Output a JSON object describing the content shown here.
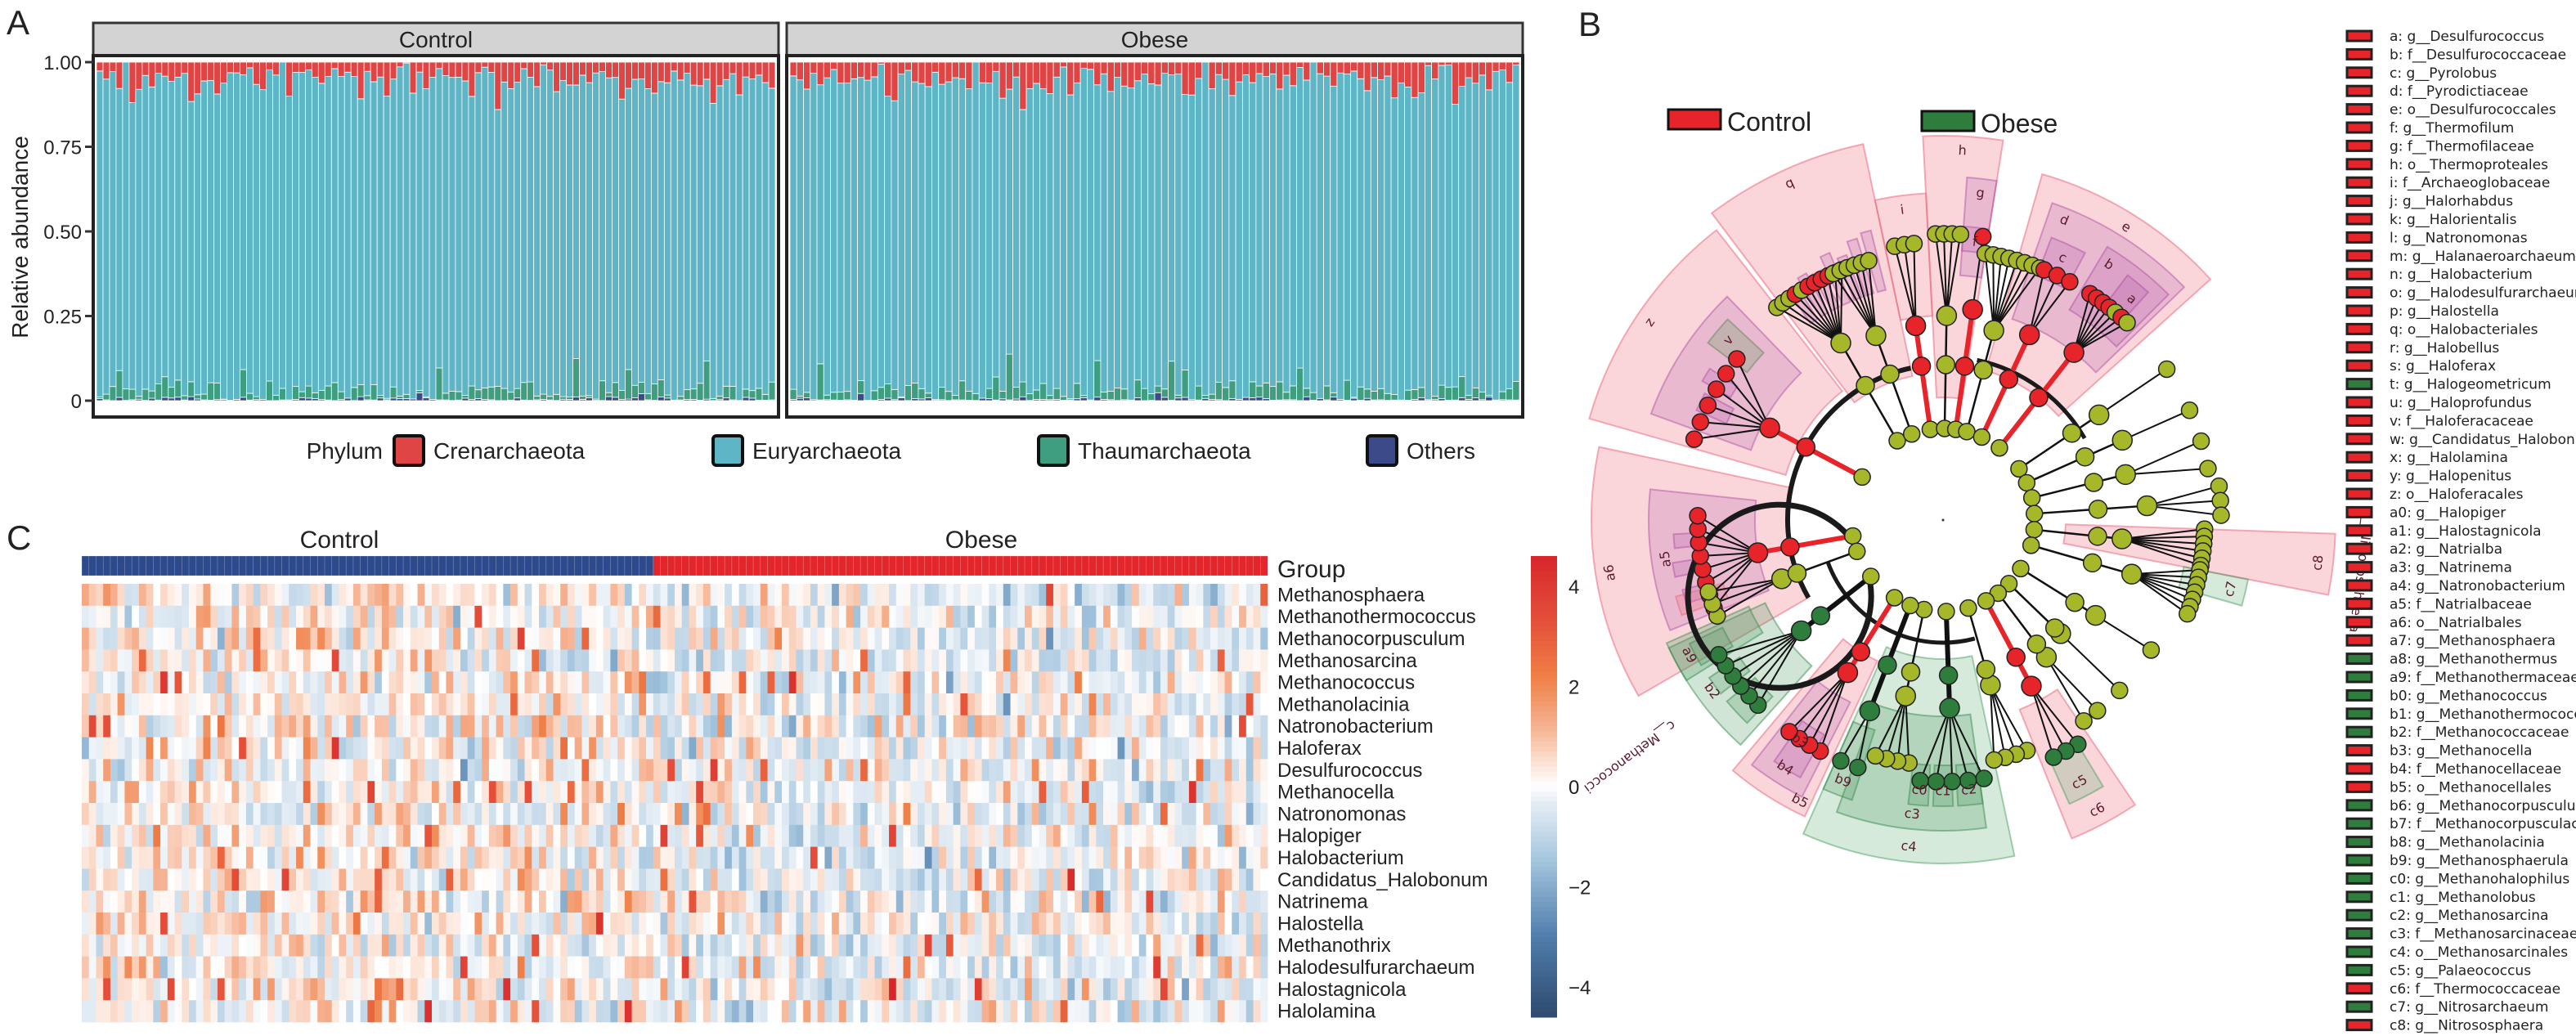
{
  "panel_labels": {
    "a": "A",
    "b": "B",
    "c": "C"
  },
  "chart_data": [
    {
      "id": "A",
      "type": "bar",
      "stacked": true,
      "facets": [
        "Control",
        "Obese"
      ],
      "samples_per_facet": [
        104,
        108
      ],
      "xlabel": "",
      "ylabel": "Relative abundance",
      "ylim": [
        0,
        1
      ],
      "yticks": [
        0,
        0.25,
        0.5,
        0.75,
        1.0
      ],
      "ytick_labels": [
        "0",
        "0.25",
        "0.50",
        "0.75",
        "1.00"
      ],
      "legend": {
        "title": "Phylum",
        "position": "bottom"
      },
      "series": [
        {
          "name": "Crenarchaeota",
          "color": "#e04545",
          "mean_fraction": 0.05
        },
        {
          "name": "Euryarchaeota",
          "color": "#5db5c6",
          "mean_fraction": 0.91
        },
        {
          "name": "Thaumarchaeota",
          "color": "#3f9e80",
          "mean_fraction": 0.03
        },
        {
          "name": "Others",
          "color": "#3d4a8a",
          "mean_fraction": 0.008
        }
      ]
    },
    {
      "id": "C",
      "type": "heatmap",
      "annotation_label": "Group",
      "column_groups": [
        {
          "name": "Control",
          "n": 80,
          "color": "#2d4a8c"
        },
        {
          "name": "Obese",
          "n": 86,
          "color": "#e3262b"
        }
      ],
      "rows": [
        "Methanosphaera",
        "Methanothermococcus",
        "Methanocorpusculum",
        "Methanosarcina",
        "Methanococcus",
        "Methanolacinia",
        "Natronobacterium",
        "Haloferax",
        "Desulfurococcus",
        "Methanocella",
        "Natronomonas",
        "Halopiger",
        "Halobacterium",
        "Candidatus_Halobonum",
        "Natrinema",
        "Halostella",
        "Methanothrix",
        "Halodesulfurarchaeum",
        "Halostagnicola",
        "Halolamina"
      ],
      "colorbar": {
        "range": [
          -4.6,
          4.6
        ],
        "ticks": [
          4,
          2,
          0,
          -2,
          -4
        ],
        "tick_labels": [
          "4",
          "2",
          "0",
          "−2",
          "−4"
        ],
        "low_color": "#2f4a6e",
        "mid_color": "#ffffff",
        "high_color": "#d7262b"
      }
    }
  ],
  "cladogram": {
    "legend": [
      {
        "label": "Control",
        "color": "#e8242b"
      },
      {
        "label": "Obese",
        "color": "#2e7d3c"
      }
    ],
    "node_color": "#a6b82a",
    "class_labels": {
      "nitrososphaeria": "c__Nitrososphaeria",
      "methanococci": "c__Methanococci"
    },
    "biomarkers": [
      {
        "key": "a",
        "name": "g__Desulfurococcus",
        "group": "Control"
      },
      {
        "key": "b",
        "name": "f__Desulfurococcaceae",
        "group": "Control"
      },
      {
        "key": "c",
        "name": "g__Pyrolobus",
        "group": "Control"
      },
      {
        "key": "d",
        "name": "f__Pyrodictiaceae",
        "group": "Control"
      },
      {
        "key": "e",
        "name": "o__Desulfurococcales",
        "group": "Control"
      },
      {
        "key": "f",
        "name": "g__Thermofilum",
        "group": "Control"
      },
      {
        "key": "g",
        "name": "f__Thermofilaceae",
        "group": "Control"
      },
      {
        "key": "h",
        "name": "o__Thermoproteales",
        "group": "Control"
      },
      {
        "key": "i",
        "name": "f__Archaeoglobaceae",
        "group": "Control"
      },
      {
        "key": "j",
        "name": "g__Halorhabdus",
        "group": "Control"
      },
      {
        "key": "k",
        "name": "g__Halorientalis",
        "group": "Control"
      },
      {
        "key": "l",
        "name": "g__Natronomonas",
        "group": "Control"
      },
      {
        "key": "m",
        "name": "g__Halanaeroarchaeum",
        "group": "Control"
      },
      {
        "key": "n",
        "name": "g__Halobacterium",
        "group": "Control"
      },
      {
        "key": "o",
        "name": "g__Halodesulfurarchaeum",
        "group": "Control"
      },
      {
        "key": "p",
        "name": "g__Halostella",
        "group": "Control"
      },
      {
        "key": "q",
        "name": "o__Halobacteriales",
        "group": "Control"
      },
      {
        "key": "r",
        "name": "g__Halobellus",
        "group": "Control"
      },
      {
        "key": "s",
        "name": "g__Haloferax",
        "group": "Control"
      },
      {
        "key": "t",
        "name": "g__Halogeometricum",
        "group": "Obese"
      },
      {
        "key": "u",
        "name": "g__Haloprofundus",
        "group": "Control"
      },
      {
        "key": "v",
        "name": "f__Haloferacaceae",
        "group": "Control"
      },
      {
        "key": "w",
        "name": "g__Candidatus_Halobonum",
        "group": "Control"
      },
      {
        "key": "x",
        "name": "g__Halolamina",
        "group": "Control"
      },
      {
        "key": "y",
        "name": "g__Halopenitus",
        "group": "Control"
      },
      {
        "key": "z",
        "name": "o__Haloferacales",
        "group": "Control"
      },
      {
        "key": "a0",
        "name": "g__Halopiger",
        "group": "Control"
      },
      {
        "key": "a1",
        "name": "g__Halostagnicola",
        "group": "Control"
      },
      {
        "key": "a2",
        "name": "g__Natrialba",
        "group": "Control"
      },
      {
        "key": "a3",
        "name": "g__Natrinema",
        "group": "Control"
      },
      {
        "key": "a4",
        "name": "g__Natronobacterium",
        "group": "Control"
      },
      {
        "key": "a5",
        "name": "f__Natrialbaceae",
        "group": "Control"
      },
      {
        "key": "a6",
        "name": "o__Natrialbales",
        "group": "Control"
      },
      {
        "key": "a7",
        "name": "g__Methanosphaera",
        "group": "Control"
      },
      {
        "key": "a8",
        "name": "g__Methanothermus",
        "group": "Obese"
      },
      {
        "key": "a9",
        "name": "f__Methanothermaceae",
        "group": "Obese"
      },
      {
        "key": "b0",
        "name": "g__Methanococcus",
        "group": "Obese"
      },
      {
        "key": "b1",
        "name": "g__Methanothermococcus",
        "group": "Obese"
      },
      {
        "key": "b2",
        "name": "f__Methanococcaceae",
        "group": "Obese"
      },
      {
        "key": "b3",
        "name": "g__Methanocella",
        "group": "Control"
      },
      {
        "key": "b4",
        "name": "f__Methanocellaceae",
        "group": "Control"
      },
      {
        "key": "b5",
        "name": "o__Methanocellales",
        "group": "Control"
      },
      {
        "key": "b6",
        "name": "g__Methanocorpusculum",
        "group": "Obese"
      },
      {
        "key": "b7",
        "name": "f__Methanocorpusculacea",
        "group": "Obese"
      },
      {
        "key": "b8",
        "name": "g__Methanolacinia",
        "group": "Obese"
      },
      {
        "key": "b9",
        "name": "g__Methanosphaerula",
        "group": "Obese"
      },
      {
        "key": "c0",
        "name": "g__Methanohalophilus",
        "group": "Obese"
      },
      {
        "key": "c1",
        "name": "g__Methanolobus",
        "group": "Obese"
      },
      {
        "key": "c2",
        "name": "g__Methanosarcina",
        "group": "Obese"
      },
      {
        "key": "c3",
        "name": "f__Methanosarcinaceae",
        "group": "Obese"
      },
      {
        "key": "c4",
        "name": "o__Methanosarcinales",
        "group": "Obese"
      },
      {
        "key": "c5",
        "name": "g__Palaeococcus",
        "group": "Obese"
      },
      {
        "key": "c6",
        "name": "f__Thermococcaceae",
        "group": "Control"
      },
      {
        "key": "c7",
        "name": "g__Nitrosarchaeum",
        "group": "Obese"
      },
      {
        "key": "c8",
        "name": "g__Nitrososphaera",
        "group": "Control"
      }
    ]
  }
}
